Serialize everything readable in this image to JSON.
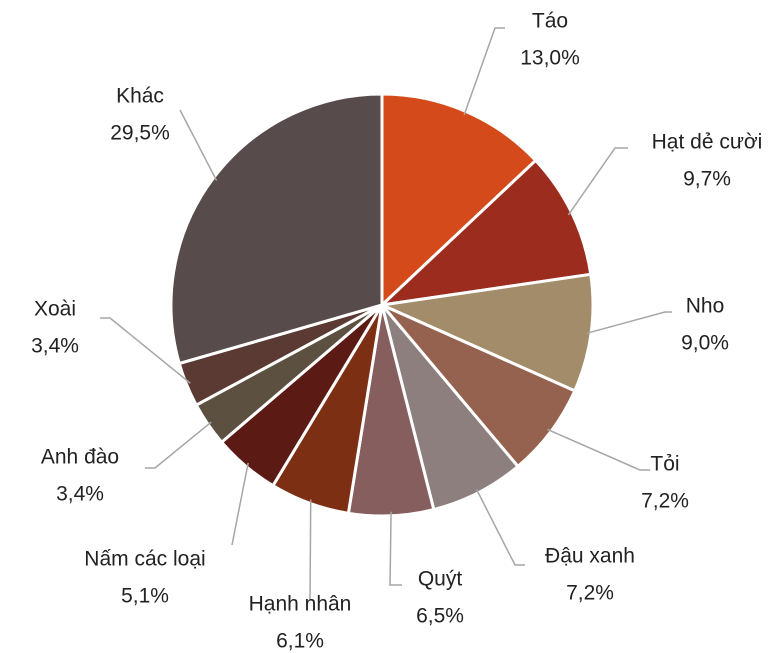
{
  "chart_data": {
    "type": "pie",
    "categories": [
      "Táo",
      "Hạt dẻ cười",
      "Nho",
      "Tỏi",
      "Đậu xanh",
      "Quýt",
      "Hạnh nhân",
      "Nấm các loại",
      "Anh đào",
      "Xoài",
      "Khác"
    ],
    "values": [
      13.0,
      9.7,
      9.0,
      7.2,
      7.2,
      6.5,
      6.1,
      5.1,
      3.4,
      3.4,
      29.5
    ],
    "value_labels": [
      "13,0%",
      "9,7%",
      "9,0%",
      "7,2%",
      "7,2%",
      "6,5%",
      "6,1%",
      "5,1%",
      "3,4%",
      "3,4%",
      "29,5%"
    ],
    "colors": [
      "#d44a1a",
      "#9b2c1e",
      "#a38c6a",
      "#956250",
      "#8c7f7e",
      "#865e5e",
      "#7c2f12",
      "#5c1a14",
      "#5c5040",
      "#5a3a32",
      "#574b4b"
    ]
  }
}
